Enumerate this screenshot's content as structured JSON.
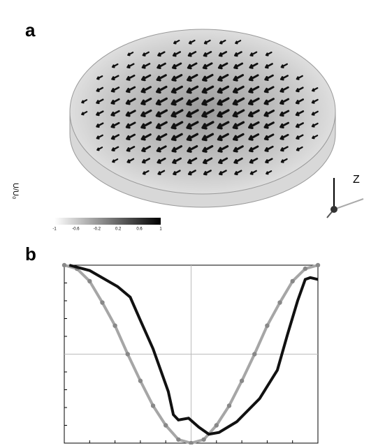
{
  "panels": {
    "a": "a",
    "b": "b"
  },
  "figure_a": {
    "colorbar_ticks": [
      -1.0,
      -0.6,
      -0.2,
      0.2,
      0.6,
      1.0
    ],
    "colorbar_label": "U/U₀",
    "axis_label": "Z"
  },
  "chart_data": {
    "type": "line",
    "xlim": [
      0,
      1
    ],
    "ylim": [
      0,
      1
    ],
    "xticks": [
      0,
      0.1,
      0.2,
      0.3,
      0.4,
      0.5,
      0.6,
      0.7,
      0.8,
      0.9,
      1
    ],
    "yticks": [
      0,
      0.1,
      0.2,
      0.3,
      0.4,
      0.5,
      0.6,
      0.7,
      0.8,
      0.9,
      1
    ],
    "grid": true,
    "series": [
      {
        "color": "#a6a6a6",
        "markers": true,
        "x": [
          0,
          0.05,
          0.1,
          0.15,
          0.2,
          0.25,
          0.3,
          0.35,
          0.4,
          0.45,
          0.5,
          0.55,
          0.6,
          0.65,
          0.7,
          0.75,
          0.8,
          0.85,
          0.9,
          0.95,
          1
        ],
        "values": [
          1,
          0.98,
          0.91,
          0.79,
          0.66,
          0.5,
          0.35,
          0.21,
          0.1,
          0.02,
          0,
          0.02,
          0.1,
          0.21,
          0.35,
          0.5,
          0.66,
          0.79,
          0.91,
          0.98,
          1
        ]
      },
      {
        "color": "#111111",
        "markers": false,
        "x": [
          0.02,
          0.1,
          0.21,
          0.26,
          0.3,
          0.35,
          0.41,
          0.43,
          0.45,
          0.49,
          0.53,
          0.57,
          0.61,
          0.68,
          0.77,
          0.84,
          0.88,
          0.92,
          0.95,
          0.97,
          1
        ],
        "values": [
          1,
          0.97,
          0.88,
          0.82,
          0.69,
          0.53,
          0.29,
          0.16,
          0.13,
          0.14,
          0.09,
          0.05,
          0.06,
          0.12,
          0.25,
          0.41,
          0.61,
          0.8,
          0.92,
          0.93,
          0.92
        ]
      }
    ]
  }
}
